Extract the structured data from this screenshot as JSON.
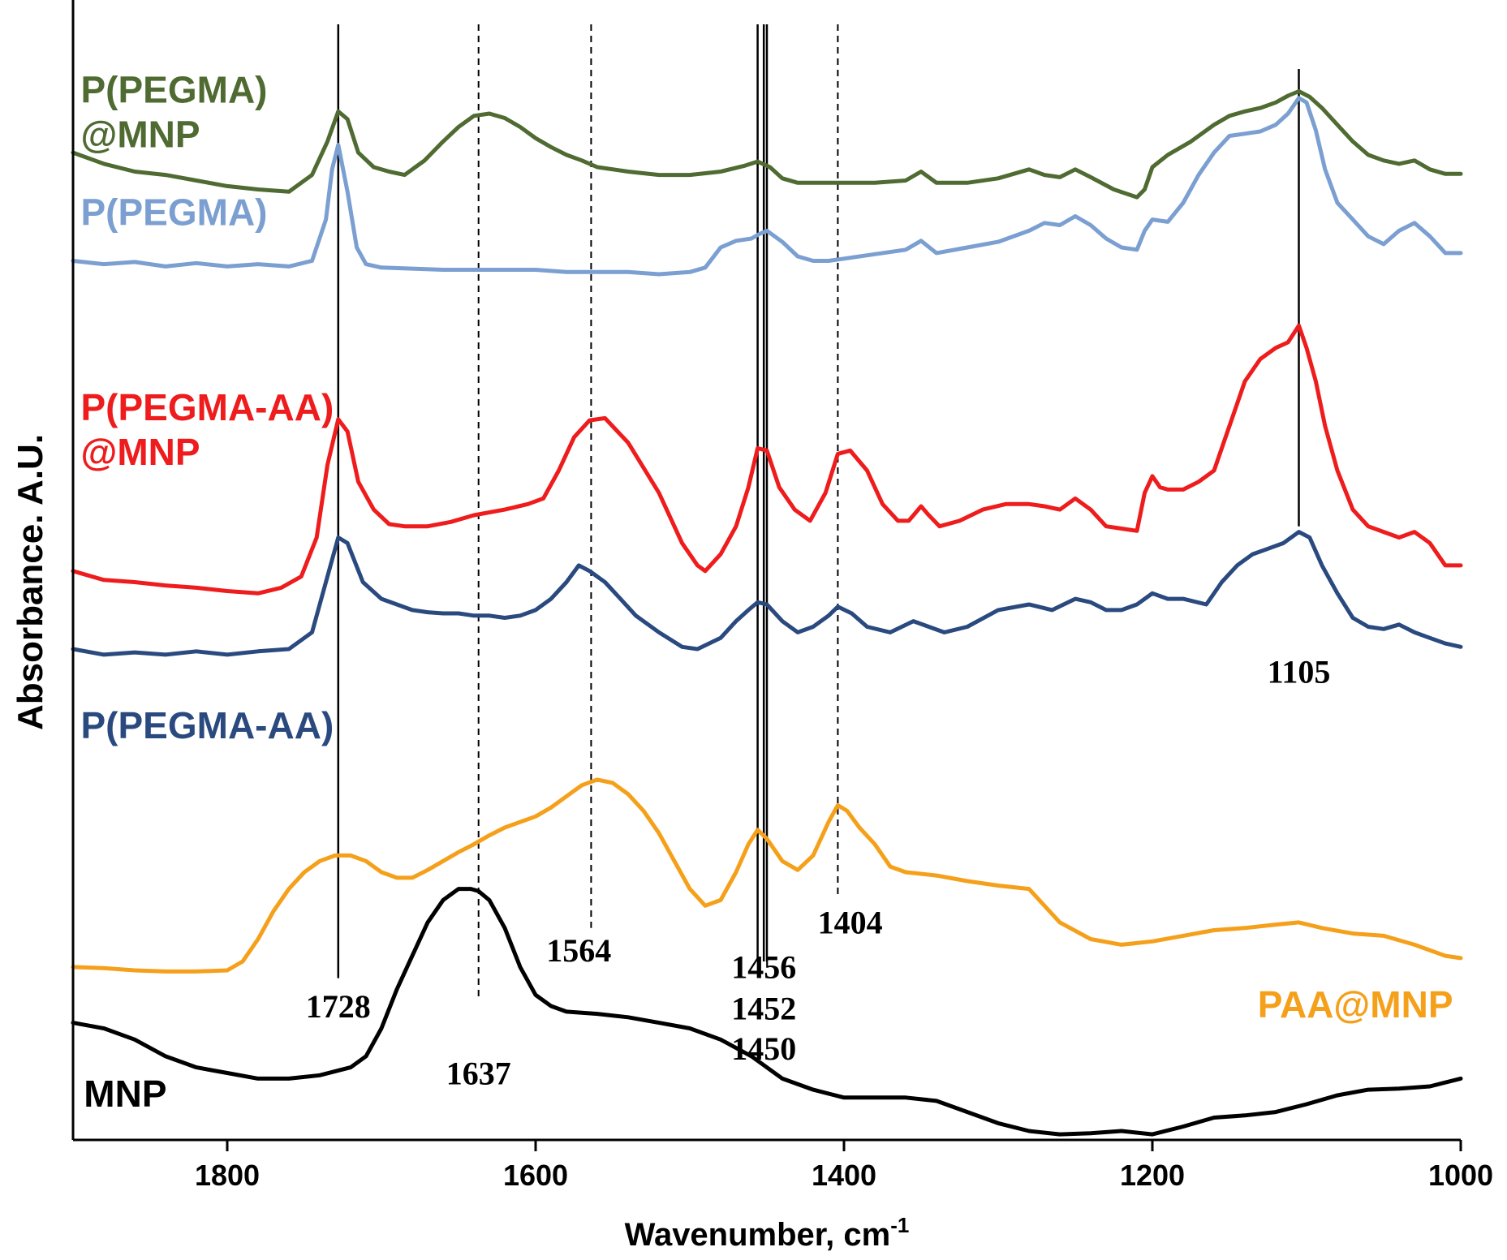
{
  "chart_data": {
    "type": "line",
    "title": "",
    "xlabel": "Wavenumber, cm",
    "xlabel_superscript": "-1",
    "ylabel": "Absorbance. A.U.",
    "xlim": [
      1900,
      1000
    ],
    "x_reversed": true,
    "ylim": [
      0,
      100
    ],
    "y_ticks_shown": false,
    "grid": false,
    "x_ticks": [
      1800,
      1600,
      1400,
      1200,
      1000
    ],
    "x_tick_labels": [
      "1800",
      "1600",
      "1400",
      "1200",
      "1000"
    ],
    "reference_lines": [
      {
        "wavenumber": 1728,
        "style": "solid"
      },
      {
        "wavenumber": 1637,
        "style": "dashed"
      },
      {
        "wavenumber": 1564,
        "style": "dashed"
      },
      {
        "wavenumber": 1456,
        "style": "solid"
      },
      {
        "wavenumber": 1452,
        "style": "solid"
      },
      {
        "wavenumber": 1450,
        "style": "solid"
      },
      {
        "wavenumber": 1404,
        "style": "dashed"
      },
      {
        "wavenumber": 1105,
        "style": "solid"
      }
    ],
    "peak_labels": [
      {
        "text": "1728",
        "x": 1728,
        "y": 11
      },
      {
        "text": "1637",
        "x": 1637,
        "y": 5
      },
      {
        "text": "1564",
        "x": 1572,
        "y": 16
      },
      {
        "text": "1456",
        "x": 1452,
        "y": 14.5
      },
      {
        "text": "1452",
        "x": 1452,
        "y": 10.8
      },
      {
        "text": "1450",
        "x": 1452,
        "y": 7.2
      },
      {
        "text": "1404",
        "x": 1396,
        "y": 18.5
      },
      {
        "text": "1105",
        "x": 1105,
        "y": 41
      }
    ],
    "series": [
      {
        "name": "P(PEGMA) @MNP",
        "label_lines": [
          "P(PEGMA)",
          "@MNP"
        ],
        "label_pos": [
          1895,
          93,
          1895,
          89
        ],
        "color": "#4f6b32",
        "x": [
          1900,
          1880,
          1860,
          1840,
          1820,
          1800,
          1780,
          1760,
          1745,
          1735,
          1728,
          1722,
          1715,
          1705,
          1695,
          1685,
          1672,
          1660,
          1650,
          1640,
          1630,
          1620,
          1610,
          1600,
          1590,
          1580,
          1570,
          1560,
          1540,
          1520,
          1500,
          1480,
          1465,
          1456,
          1448,
          1440,
          1430,
          1420,
          1410,
          1400,
          1380,
          1360,
          1350,
          1340,
          1320,
          1300,
          1280,
          1270,
          1260,
          1250,
          1240,
          1225,
          1210,
          1205,
          1200,
          1190,
          1175,
          1160,
          1150,
          1140,
          1130,
          1120,
          1112,
          1105,
          1098,
          1090,
          1080,
          1070,
          1060,
          1050,
          1040,
          1030,
          1020,
          1010,
          1000
        ],
        "y": [
          88.5,
          87.5,
          86.8,
          86.5,
          86.0,
          85.5,
          85.2,
          85.0,
          86.5,
          89.5,
          92.2,
          91.5,
          88.5,
          87.2,
          86.8,
          86.5,
          87.8,
          89.5,
          90.8,
          91.8,
          92.0,
          91.6,
          90.8,
          89.8,
          89.0,
          88.3,
          87.8,
          87.2,
          86.8,
          86.5,
          86.5,
          86.8,
          87.3,
          87.7,
          87.2,
          86.2,
          85.8,
          85.8,
          85.8,
          85.8,
          85.8,
          86.0,
          86.8,
          85.8,
          85.8,
          86.2,
          87.0,
          86.5,
          86.3,
          87.0,
          86.3,
          85.2,
          84.5,
          85.2,
          87.2,
          88.3,
          89.5,
          91.0,
          91.8,
          92.2,
          92.5,
          93.0,
          93.6,
          94.0,
          93.5,
          92.5,
          91.0,
          89.5,
          88.3,
          87.8,
          87.5,
          87.8,
          87.0,
          86.6,
          86.6
        ]
      },
      {
        "name": "P(PEGMA)",
        "label_lines": [
          "P(PEGMA)"
        ],
        "label_pos": [
          1895,
          82
        ],
        "color": "#7b9fd1",
        "x": [
          1900,
          1880,
          1860,
          1840,
          1820,
          1800,
          1780,
          1760,
          1745,
          1736,
          1732,
          1728,
          1722,
          1716,
          1710,
          1700,
          1680,
          1660,
          1640,
          1620,
          1600,
          1580,
          1560,
          1540,
          1520,
          1500,
          1490,
          1480,
          1470,
          1460,
          1455,
          1450,
          1440,
          1430,
          1420,
          1410,
          1400,
          1380,
          1360,
          1350,
          1340,
          1320,
          1300,
          1280,
          1270,
          1260,
          1250,
          1240,
          1230,
          1220,
          1210,
          1205,
          1200,
          1190,
          1180,
          1170,
          1160,
          1150,
          1140,
          1130,
          1120,
          1112,
          1105,
          1100,
          1094,
          1088,
          1080,
          1070,
          1060,
          1050,
          1040,
          1030,
          1020,
          1010,
          1000
        ],
        "y": [
          78.8,
          78.5,
          78.7,
          78.3,
          78.6,
          78.3,
          78.5,
          78.3,
          78.8,
          82.5,
          87.0,
          89.2,
          85.0,
          80.0,
          78.5,
          78.2,
          78.1,
          78.0,
          78.0,
          78.0,
          78.0,
          77.8,
          77.8,
          77.8,
          77.6,
          77.8,
          78.2,
          80.0,
          80.6,
          80.8,
          81.2,
          81.5,
          80.5,
          79.2,
          78.8,
          78.8,
          79.0,
          79.4,
          79.8,
          80.6,
          79.5,
          80.0,
          80.5,
          81.5,
          82.2,
          82.0,
          82.8,
          82.0,
          80.8,
          80.0,
          79.8,
          81.5,
          82.5,
          82.3,
          84.0,
          86.5,
          88.5,
          90.0,
          90.2,
          90.4,
          91.0,
          92.0,
          93.4,
          93.0,
          90.5,
          87.0,
          84.0,
          82.5,
          81.0,
          80.3,
          81.5,
          82.2,
          81.0,
          79.5,
          79.5
        ]
      },
      {
        "name": "P(PEGMA-AA) @MNP",
        "label_lines": [
          "P(PEGMA-AA)",
          "@MNP"
        ],
        "label_pos": [
          1895,
          64.5,
          1895,
          60.5
        ],
        "color": "#ee1c1c",
        "x": [
          1900,
          1880,
          1860,
          1840,
          1820,
          1800,
          1780,
          1765,
          1752,
          1742,
          1735,
          1728,
          1722,
          1715,
          1705,
          1695,
          1685,
          1670,
          1655,
          1640,
          1620,
          1605,
          1595,
          1585,
          1575,
          1565,
          1555,
          1540,
          1520,
          1505,
          1495,
          1490,
          1480,
          1470,
          1462,
          1456,
          1450,
          1442,
          1432,
          1422,
          1412,
          1404,
          1396,
          1385,
          1375,
          1365,
          1358,
          1350,
          1345,
          1338,
          1325,
          1310,
          1295,
          1280,
          1270,
          1260,
          1250,
          1240,
          1230,
          1220,
          1210,
          1205,
          1200,
          1195,
          1190,
          1180,
          1170,
          1160,
          1150,
          1140,
          1130,
          1120,
          1112,
          1105,
          1100,
          1094,
          1088,
          1080,
          1070,
          1060,
          1050,
          1040,
          1030,
          1020,
          1010,
          1000
        ],
        "y": [
          51.0,
          50.2,
          50.0,
          49.7,
          49.5,
          49.2,
          49.0,
          49.5,
          50.5,
          54.0,
          60.5,
          64.6,
          63.5,
          59.0,
          56.5,
          55.2,
          55.0,
          55.0,
          55.4,
          56.0,
          56.5,
          57.0,
          57.5,
          60.0,
          63.0,
          64.5,
          64.7,
          62.5,
          58.0,
          53.5,
          51.5,
          51.0,
          52.5,
          55.0,
          58.5,
          62.0,
          61.8,
          58.5,
          56.5,
          55.5,
          58.0,
          61.5,
          61.8,
          60.0,
          57.0,
          55.5,
          55.5,
          56.8,
          56.0,
          55.0,
          55.5,
          56.5,
          57.0,
          57.0,
          56.8,
          56.5,
          57.5,
          56.5,
          55.0,
          54.8,
          54.6,
          58.0,
          59.5,
          58.5,
          58.3,
          58.3,
          59.0,
          60.0,
          64.0,
          68.0,
          70.0,
          71.0,
          71.5,
          73.0,
          71.0,
          68.0,
          64.0,
          60.0,
          56.5,
          55.0,
          54.5,
          54.0,
          54.5,
          53.5,
          51.5,
          51.5
        ]
      },
      {
        "name": "P(PEGMA-AA)",
        "label_lines": [
          "P(PEGMA-AA)"
        ],
        "label_pos": [
          1895,
          36
        ],
        "color": "#2a4a7f",
        "x": [
          1900,
          1880,
          1860,
          1840,
          1820,
          1800,
          1780,
          1760,
          1745,
          1735,
          1728,
          1722,
          1712,
          1700,
          1690,
          1680,
          1670,
          1660,
          1650,
          1640,
          1630,
          1620,
          1610,
          1600,
          1590,
          1580,
          1572,
          1565,
          1555,
          1545,
          1535,
          1520,
          1505,
          1495,
          1480,
          1470,
          1462,
          1456,
          1450,
          1440,
          1430,
          1420,
          1410,
          1404,
          1395,
          1385,
          1370,
          1355,
          1345,
          1335,
          1320,
          1300,
          1280,
          1265,
          1250,
          1240,
          1230,
          1220,
          1210,
          1200,
          1190,
          1180,
          1165,
          1155,
          1145,
          1135,
          1125,
          1115,
          1105,
          1098,
          1090,
          1080,
          1070,
          1060,
          1050,
          1040,
          1030,
          1020,
          1010,
          1000
        ],
        "y": [
          44.0,
          43.5,
          43.7,
          43.5,
          43.8,
          43.5,
          43.8,
          44.0,
          45.5,
          50.5,
          54.0,
          53.5,
          50.0,
          48.5,
          48.0,
          47.5,
          47.3,
          47.2,
          47.2,
          47.0,
          47.0,
          46.8,
          47.0,
          47.5,
          48.5,
          50.0,
          51.5,
          51.0,
          50.0,
          48.5,
          47.0,
          45.5,
          44.2,
          44.0,
          45.0,
          46.5,
          47.5,
          48.2,
          48.0,
          46.5,
          45.5,
          46.0,
          47.0,
          47.8,
          47.2,
          46.0,
          45.5,
          46.5,
          46.0,
          45.5,
          46.0,
          47.5,
          48.0,
          47.5,
          48.5,
          48.2,
          47.5,
          47.5,
          48.0,
          49.0,
          48.5,
          48.5,
          48.0,
          50.0,
          51.5,
          52.5,
          53.0,
          53.5,
          54.5,
          54.0,
          51.5,
          49.0,
          46.8,
          46.0,
          45.8,
          46.2,
          45.5,
          45.0,
          44.5,
          44.2
        ]
      },
      {
        "name": "PAA@MNP",
        "label_lines": [
          "PAA@MNP"
        ],
        "label_pos": [
          1005,
          11
        ],
        "color": "#f5a01a",
        "x": [
          1900,
          1880,
          1860,
          1840,
          1820,
          1800,
          1790,
          1780,
          1770,
          1760,
          1750,
          1740,
          1730,
          1720,
          1710,
          1700,
          1690,
          1680,
          1670,
          1660,
          1650,
          1640,
          1630,
          1620,
          1610,
          1600,
          1590,
          1580,
          1570,
          1560,
          1550,
          1540,
          1530,
          1520,
          1510,
          1500,
          1490,
          1480,
          1470,
          1462,
          1456,
          1450,
          1440,
          1430,
          1420,
          1410,
          1404,
          1398,
          1390,
          1380,
          1370,
          1360,
          1340,
          1320,
          1300,
          1280,
          1270,
          1260,
          1240,
          1220,
          1200,
          1180,
          1160,
          1140,
          1120,
          1105,
          1090,
          1070,
          1050,
          1030,
          1010,
          1000
        ],
        "y": [
          15.5,
          15.4,
          15.2,
          15.1,
          15.1,
          15.2,
          16.0,
          18.0,
          20.5,
          22.5,
          24.0,
          25.0,
          25.5,
          25.5,
          25.0,
          24.0,
          23.5,
          23.5,
          24.2,
          25.0,
          25.8,
          26.5,
          27.3,
          28.0,
          28.5,
          29.0,
          29.8,
          30.8,
          31.8,
          32.3,
          32.0,
          31.0,
          29.5,
          27.5,
          25.0,
          22.5,
          21.0,
          21.5,
          24.0,
          26.5,
          27.8,
          27.0,
          25.0,
          24.2,
          25.5,
          28.5,
          30.0,
          29.5,
          28.0,
          26.5,
          24.5,
          24.0,
          23.7,
          23.2,
          22.8,
          22.5,
          21.0,
          19.5,
          18.0,
          17.5,
          17.8,
          18.3,
          18.8,
          19.0,
          19.3,
          19.5,
          19.0,
          18.5,
          18.3,
          17.5,
          16.5,
          16.3
        ]
      },
      {
        "name": "MNP",
        "label_lines": [
          "MNP"
        ],
        "label_pos": [
          1893,
          3
        ],
        "color": "#000000",
        "x": [
          1900,
          1880,
          1860,
          1840,
          1820,
          1800,
          1780,
          1760,
          1740,
          1720,
          1710,
          1700,
          1690,
          1680,
          1670,
          1660,
          1650,
          1642,
          1637,
          1630,
          1620,
          1610,
          1600,
          1590,
          1580,
          1560,
          1540,
          1520,
          1500,
          1480,
          1460,
          1440,
          1420,
          1400,
          1380,
          1360,
          1340,
          1320,
          1300,
          1280,
          1260,
          1240,
          1220,
          1200,
          1180,
          1160,
          1140,
          1120,
          1100,
          1080,
          1060,
          1040,
          1020,
          1000
        ],
        "y": [
          10.5,
          10.0,
          9.0,
          7.5,
          6.5,
          6.0,
          5.5,
          5.5,
          5.8,
          6.5,
          7.5,
          10.0,
          13.5,
          16.5,
          19.5,
          21.5,
          22.5,
          22.5,
          22.3,
          21.5,
          19.0,
          15.5,
          13.0,
          12.0,
          11.5,
          11.3,
          11.0,
          10.5,
          10.0,
          9.0,
          7.5,
          5.5,
          4.5,
          3.8,
          3.8,
          3.8,
          3.5,
          2.5,
          1.5,
          0.8,
          0.5,
          0.6,
          0.8,
          0.5,
          1.2,
          2.0,
          2.2,
          2.5,
          3.2,
          4.0,
          4.5,
          4.6,
          4.8,
          5.5
        ]
      }
    ]
  }
}
